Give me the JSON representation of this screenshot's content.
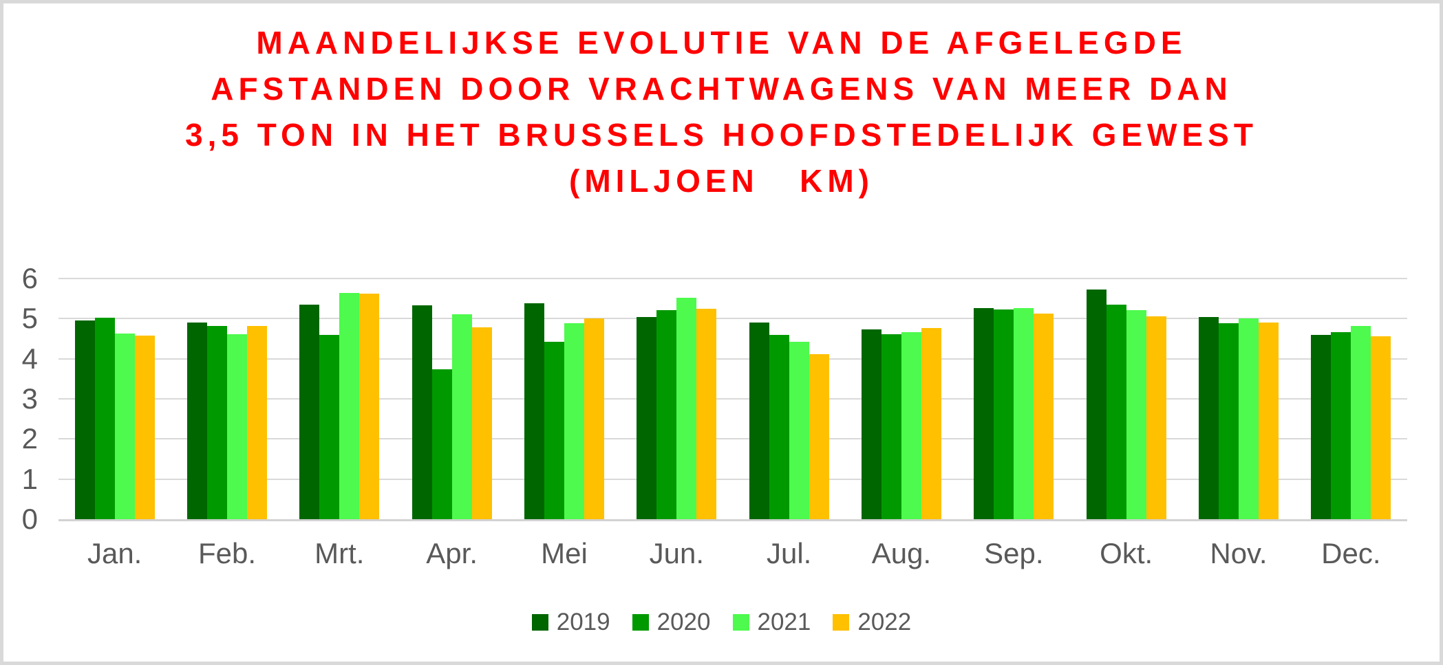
{
  "frame": {
    "background": "#FFFFFF",
    "border_color": "#D9D9D9"
  },
  "title": {
    "text": "MAANDELIJKSE EVOLUTIE VAN DE AFGELEGDE\nAFSTANDEN DOOR VRACHTWAGENS VAN MEER DAN\n3,5 TON IN HET BRUSSELS HOOFDSTEDELIJK GEWEST\n(MILJOEN   KM)",
    "color": "#FF0000"
  },
  "chart_data": {
    "type": "bar",
    "title": "MAANDELIJKSE EVOLUTIE VAN DE AFGELEGDE AFSTANDEN DOOR VRACHTWAGENS VAN MEER DAN 3,5 TON IN HET BRUSSELS HOOFDSTEDELIJK GEWEST (MILJOEN KM)",
    "xlabel": "",
    "ylabel": "",
    "categories": [
      "Jan.",
      "Feb.",
      "Mrt.",
      "Apr.",
      "Mei",
      "Jun.",
      "Jul.",
      "Aug.",
      "Sep.",
      "Okt.",
      "Nov.",
      "Dec."
    ],
    "series": [
      {
        "name": "2019",
        "color": "#006600",
        "values": [
          4.95,
          4.9,
          5.35,
          5.34,
          5.38,
          5.04,
          4.9,
          4.74,
          5.27,
          5.73,
          5.04,
          4.59
        ]
      },
      {
        "name": "2020",
        "color": "#009A00",
        "values": [
          5.03,
          4.81,
          4.6,
          3.74,
          4.43,
          5.21,
          4.6,
          4.61,
          5.23,
          5.35,
          4.89,
          4.67
        ]
      },
      {
        "name": "2021",
        "color": "#4DFA4D",
        "values": [
          4.63,
          4.61,
          5.64,
          5.11,
          4.88,
          5.52,
          4.43,
          4.67,
          5.26,
          5.21,
          5.0,
          4.81
        ]
      },
      {
        "name": "2022",
        "color": "#FFC000",
        "values": [
          4.58,
          4.81,
          5.62,
          4.79,
          5.0,
          5.24,
          4.12,
          4.77,
          5.13,
          5.05,
          4.91,
          4.56
        ]
      }
    ],
    "ylim": [
      0,
      6
    ],
    "y_ticks": [
      0,
      1,
      2,
      3,
      4,
      5,
      6
    ],
    "grid": true,
    "legend_position": "bottom",
    "text_color": "#595959",
    "gridline_color": "#D9D9D9"
  }
}
